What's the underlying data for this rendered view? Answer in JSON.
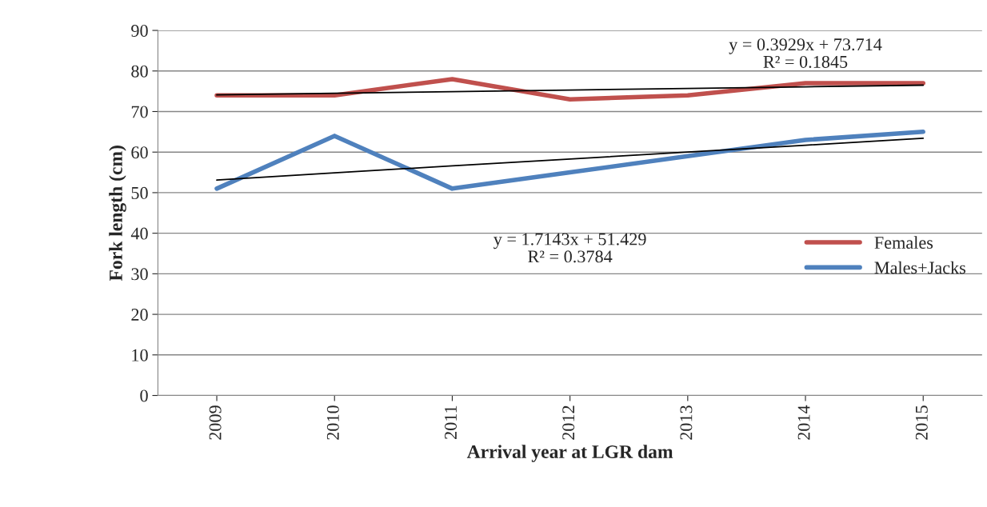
{
  "chart_data": {
    "type": "line",
    "xlabel": "Arrival year at LGR dam",
    "ylabel": "Fork length (cm)",
    "categories": [
      "2009",
      "2010",
      "2011",
      "2012",
      "2013",
      "2014",
      "2015"
    ],
    "series": [
      {
        "name": "Females",
        "color": "#c0504d",
        "values": [
          74,
          74,
          78,
          73,
          74,
          77,
          77
        ]
      },
      {
        "name": "Males+Jacks",
        "color": "#4f81bd",
        "values": [
          51,
          64,
          51,
          55,
          59,
          63,
          65
        ]
      },
      {
        "type": "line",
        "color": "#000000",
        "values": [
          74.1,
          74.5,
          74.9,
          75.3,
          75.7,
          76.1,
          76.5
        ]
      },
      {
        "type": "line",
        "color": "#000000",
        "values": [
          53.1,
          54.9,
          56.6,
          58.3,
          60.0,
          61.7,
          63.4
        ]
      }
    ],
    "annotations": [
      "y = 0.3929x + 73.714\nR² = 0.1845",
      "y = 1.7143x + 51.429\nR² = 0.3784"
    ],
    "ylim": [
      0,
      90
    ],
    "yticks": [
      0,
      10,
      20,
      30,
      40,
      50,
      60,
      70,
      80,
      90
    ],
    "grid": "y",
    "legend": "right",
    "marker": "none",
    "line_style": "solid"
  }
}
